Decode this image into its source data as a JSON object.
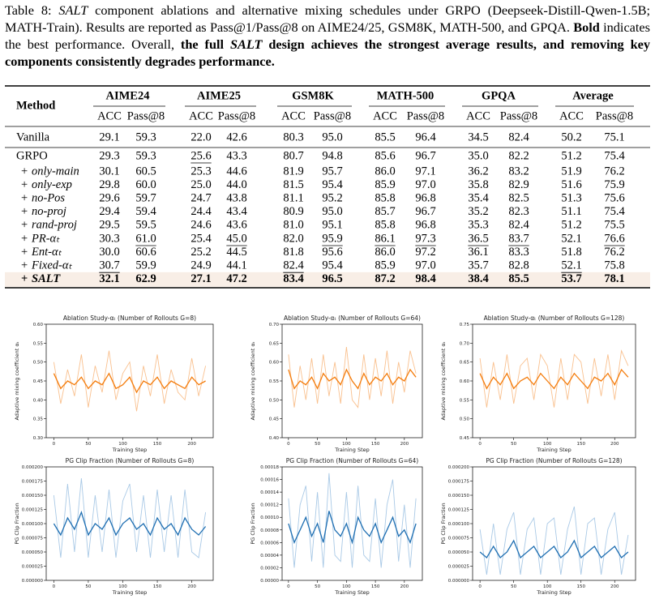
{
  "caption": [
    {
      "text": "Table 8: ",
      "style": "normal"
    },
    {
      "text": "SALT",
      "style": "italic"
    },
    {
      "text": " component ablations and alternative mixing schedules under GRPO (Deepseek-Distill-Qwen-1.5B; MATH-Train). Results are reported as Pass@1/Pass@8 on AIME24/25, GSM8K, MATH-500, and GPQA. ",
      "style": "normal"
    },
    {
      "text": "Bold",
      "style": "bold"
    },
    {
      "text": " indicates the best performance. Overall, ",
      "style": "normal"
    },
    {
      "text": "the full ",
      "style": "bold"
    },
    {
      "text": "SALT",
      "style": "bold-italic"
    },
    {
      "text": " design achieves the strongest average results, and removing key components consistently degrades performance.",
      "style": "bold"
    }
  ],
  "table": {
    "header": "Method",
    "groups": [
      "AIME24",
      "AIME25",
      "GSM8K",
      "MATH-500",
      "GPQA",
      "Average"
    ],
    "subheaders": [
      "ACC",
      "Pass@8"
    ],
    "rows": [
      {
        "method": {
          "name": "Vanilla"
        },
        "cells": [
          "29.1",
          "59.3",
          "22.0",
          "42.6",
          "80.3",
          "95.0",
          "85.5",
          "96.4",
          "34.5",
          "82.4",
          "50.2",
          "75.1"
        ]
      },
      {
        "method": {
          "name": "GRPO"
        },
        "cells": [
          "29.3",
          "59.3",
          "25.6",
          "43.3",
          "80.7",
          "94.8",
          "85.6",
          "96.7",
          "35.0",
          "82.2",
          "51.2",
          "75.4"
        ]
      },
      {
        "method": {
          "prefix": "+",
          "name": "only-main"
        },
        "cells": [
          "30.1",
          "60.5",
          "25.3",
          "44.6",
          "81.9",
          "95.7",
          "86.0",
          "97.1",
          "36.2",
          "83.2",
          "51.9",
          "76.2"
        ]
      },
      {
        "method": {
          "prefix": "+",
          "name": "only-exp"
        },
        "cells": [
          "29.8",
          "60.0",
          "25.0",
          "44.0",
          "81.5",
          "95.4",
          "85.9",
          "97.0",
          "35.8",
          "82.9",
          "51.6",
          "75.9"
        ]
      },
      {
        "method": {
          "prefix": "+",
          "name": "no-Pos"
        },
        "cells": [
          "29.6",
          "59.7",
          "24.7",
          "43.8",
          "81.1",
          "95.2",
          "85.8",
          "96.8",
          "35.4",
          "82.5",
          "51.3",
          "75.6"
        ]
      },
      {
        "method": {
          "prefix": "+",
          "name": "no-proj"
        },
        "cells": [
          "29.4",
          "59.4",
          "24.4",
          "43.4",
          "80.9",
          "95.0",
          "85.7",
          "96.7",
          "35.2",
          "82.3",
          "51.1",
          "75.4"
        ]
      },
      {
        "method": {
          "prefix": "+",
          "name": "rand-proj"
        },
        "cells": [
          "29.5",
          "59.5",
          "24.6",
          "43.6",
          "81.0",
          "95.1",
          "85.8",
          "96.8",
          "35.3",
          "82.4",
          "51.2",
          "75.5"
        ]
      },
      {
        "method": {
          "prefix": "+",
          "name": "PR-αₜ"
        },
        "cells": [
          "30.3",
          "61.0",
          "25.4",
          "45.0",
          "82.0",
          "95.9",
          "86.1",
          "97.3",
          "36.5",
          "83.7",
          "52.1",
          "76.6"
        ]
      },
      {
        "method": {
          "prefix": "+",
          "name": "Ent-αₜ"
        },
        "cells": [
          "30.0",
          "60.6",
          "25.2",
          "44.5",
          "81.8",
          "95.6",
          "86.0",
          "97.2",
          "36.1",
          "83.3",
          "51.8",
          "76.2"
        ]
      },
      {
        "method": {
          "prefix": "+",
          "name": "Fixed-αₜ"
        },
        "cells": [
          "30.7",
          "59.9",
          "24.9",
          "44.1",
          "82.4",
          "95.4",
          "85.9",
          "97.0",
          "35.7",
          "82.8",
          "52.1",
          "75.8"
        ]
      },
      {
        "method": {
          "prefix": "+",
          "name": "SALT"
        },
        "cells": [
          "32.1",
          "62.9",
          "27.1",
          "47.2",
          "83.4",
          "96.5",
          "87.2",
          "98.4",
          "38.4",
          "85.5",
          "53.7",
          "78.1"
        ]
      }
    ],
    "underlined": [
      [
        1,
        2
      ],
      [
        7,
        1
      ],
      [
        7,
        3
      ],
      [
        7,
        5
      ],
      [
        7,
        6
      ],
      [
        7,
        7
      ],
      [
        7,
        8
      ],
      [
        7,
        9
      ],
      [
        7,
        11
      ],
      [
        9,
        0
      ],
      [
        9,
        4
      ],
      [
        9,
        10
      ]
    ],
    "bold_row": 10,
    "highlight_row": 10,
    "highlight_color": "#f8eee6"
  },
  "chart_data": [
    {
      "type": "line",
      "title": "Ablation Study-αₜ (Number of Rollouts G=8)",
      "xlabel": "Training Step",
      "ylabel": "Adaptive mixing coefficient αₜ",
      "x": [
        0,
        10,
        20,
        30,
        40,
        50,
        60,
        70,
        80,
        90,
        100,
        110,
        120,
        130,
        140,
        150,
        160,
        170,
        180,
        190,
        200,
        210,
        220
      ],
      "series": [
        {
          "color": "#f9c08e",
          "values": [
            0.5,
            0.39,
            0.48,
            0.41,
            0.52,
            0.38,
            0.49,
            0.42,
            0.53,
            0.4,
            0.47,
            0.5,
            0.37,
            0.49,
            0.41,
            0.52,
            0.39,
            0.48,
            0.42,
            0.4,
            0.51,
            0.41,
            0.49
          ]
        },
        {
          "color": "#f47c0c",
          "values": [
            0.47,
            0.43,
            0.45,
            0.44,
            0.46,
            0.43,
            0.45,
            0.44,
            0.47,
            0.43,
            0.44,
            0.46,
            0.42,
            0.45,
            0.44,
            0.46,
            0.43,
            0.45,
            0.44,
            0.43,
            0.46,
            0.44,
            0.45
          ]
        }
      ],
      "xlim": [
        -11,
        231
      ],
      "ylim": [
        0.3,
        0.6
      ],
      "xticks": [
        0,
        50,
        100,
        150,
        200
      ],
      "yticks": [
        {
          "value": 0.3,
          "label": "0.30"
        },
        0.35,
        {
          "value": 0.4,
          "label": "0.40"
        },
        0.45,
        {
          "value": 0.5,
          "label": "0.50"
        },
        0.55,
        {
          "value": 0.6,
          "label": "0.60"
        }
      ]
    },
    {
      "type": "line",
      "title": "Ablation Study-αₜ (Number of Rollouts G=64)",
      "xlabel": "Training Step",
      "ylabel": "Adaptive mixing coefficient αₜ",
      "x": [
        0,
        10,
        20,
        30,
        40,
        50,
        60,
        70,
        80,
        90,
        100,
        110,
        120,
        130,
        140,
        150,
        160,
        170,
        180,
        190,
        200,
        210,
        220
      ],
      "series": [
        {
          "color": "#f9c08e",
          "values": [
            0.62,
            0.48,
            0.59,
            0.5,
            0.61,
            0.49,
            0.62,
            0.51,
            0.6,
            0.49,
            0.64,
            0.5,
            0.48,
            0.62,
            0.5,
            0.61,
            0.51,
            0.63,
            0.49,
            0.6,
            0.52,
            0.63,
            0.57
          ]
        },
        {
          "color": "#f47c0c",
          "values": [
            0.58,
            0.53,
            0.55,
            0.54,
            0.56,
            0.53,
            0.57,
            0.55,
            0.56,
            0.54,
            0.58,
            0.55,
            0.53,
            0.57,
            0.54,
            0.56,
            0.55,
            0.57,
            0.54,
            0.56,
            0.55,
            0.58,
            0.56
          ]
        }
      ],
      "xlim": [
        -11,
        231
      ],
      "ylim": [
        0.4,
        0.7
      ],
      "xticks": [
        0,
        50,
        100,
        150,
        200
      ],
      "yticks": [
        {
          "value": 0.4,
          "label": "0.40"
        },
        0.45,
        {
          "value": 0.5,
          "label": "0.50"
        },
        0.55,
        {
          "value": 0.6,
          "label": "0.60"
        },
        0.65,
        {
          "value": 0.7,
          "label": "0.70"
        }
      ]
    },
    {
      "type": "line",
      "title": "Ablation Study-αₜ (Number of Rollouts G=128)",
      "xlabel": "Training Step",
      "ylabel": "Adaptive mixing coefficient αₜ",
      "x": [
        0,
        10,
        20,
        30,
        40,
        50,
        60,
        70,
        80,
        90,
        100,
        110,
        120,
        130,
        140,
        150,
        160,
        170,
        180,
        190,
        200,
        210,
        220
      ],
      "series": [
        {
          "color": "#f9c08e",
          "values": [
            0.66,
            0.53,
            0.65,
            0.55,
            0.67,
            0.54,
            0.64,
            0.66,
            0.55,
            0.67,
            0.64,
            0.53,
            0.66,
            0.55,
            0.67,
            0.65,
            0.54,
            0.66,
            0.56,
            0.67,
            0.55,
            0.68,
            0.64
          ]
        },
        {
          "color": "#f47c0c",
          "values": [
            0.62,
            0.58,
            0.61,
            0.59,
            0.62,
            0.58,
            0.6,
            0.61,
            0.59,
            0.62,
            0.6,
            0.58,
            0.61,
            0.59,
            0.62,
            0.6,
            0.58,
            0.61,
            0.6,
            0.62,
            0.59,
            0.63,
            0.61
          ]
        }
      ],
      "xlim": [
        -11,
        231
      ],
      "ylim": [
        0.45,
        0.75
      ],
      "xticks": [
        0,
        50,
        100,
        150,
        200
      ],
      "yticks": [
        0.45,
        {
          "value": 0.5,
          "label": "0.50"
        },
        0.55,
        {
          "value": 0.6,
          "label": "0.60"
        },
        0.65,
        {
          "value": 0.7,
          "label": "0.70"
        },
        0.75
      ]
    },
    {
      "type": "line",
      "title": "PG Clip Fraction (Number of Rollouts G=8)",
      "xlabel": "Training Step",
      "ylabel": "PG Clip Fraction",
      "x": [
        0,
        10,
        20,
        30,
        40,
        50,
        60,
        70,
        80,
        90,
        100,
        110,
        120,
        130,
        140,
        150,
        160,
        170,
        180,
        190,
        200,
        210,
        220
      ],
      "series": [
        {
          "color": "#a9c9e6",
          "values": [
            0.00015,
            4e-05,
            0.00017,
            5e-05,
            0.00018,
            4e-05,
            0.00015,
            5e-05,
            0.00016,
            4e-05,
            0.00014,
            0.00017,
            5e-05,
            0.00015,
            4e-05,
            0.00016,
            5e-05,
            0.00015,
            4e-05,
            0.00016,
            5e-05,
            4e-05,
            0.00012
          ]
        },
        {
          "color": "#1f6fb2",
          "values": [
            0.0001,
            8e-05,
            0.00011,
            9e-05,
            0.00012,
            8e-05,
            0.0001,
            9e-05,
            0.00011,
            8e-05,
            0.0001,
            0.00011,
            9e-05,
            0.0001,
            8e-05,
            0.00011,
            9e-05,
            0.0001,
            8e-05,
            0.00011,
            9e-05,
            8e-05,
            9.5e-05
          ]
        }
      ],
      "xlim": [
        -11,
        231
      ],
      "ylim": [
        0,
        0.0002
      ],
      "xticks": [
        0,
        50,
        100,
        150,
        200
      ],
      "yticks": [
        {
          "value": 0,
          "label": "0.000000"
        },
        2.5e-05,
        {
          "value": 5e-05,
          "label": "0.000050"
        },
        7.5e-05,
        {
          "value": 0.0001,
          "label": "0.000100"
        },
        0.000125,
        {
          "value": 0.00015,
          "label": "0.000150"
        },
        0.000175,
        {
          "value": 0.0002,
          "label": "0.000200"
        }
      ]
    },
    {
      "type": "line",
      "title": "PG Clip Fraction (Number of Rollouts G=64)",
      "xlabel": "Training Step",
      "ylabel": "PG Clip Fraction",
      "x": [
        0,
        10,
        20,
        30,
        40,
        50,
        60,
        70,
        80,
        90,
        100,
        110,
        120,
        130,
        140,
        150,
        160,
        170,
        180,
        190,
        200,
        210,
        220
      ],
      "series": [
        {
          "color": "#a9c9e6",
          "values": [
            0.00013,
            2e-05,
            0.00012,
            0.00015,
            3e-05,
            0.00014,
            2e-05,
            0.00017,
            4e-05,
            3e-05,
            0.00014,
            2e-05,
            0.00015,
            4e-05,
            3e-05,
            0.00013,
            2e-05,
            0.00012,
            0.00016,
            3e-05,
            0.00012,
            2e-05,
            0.00013
          ]
        },
        {
          "color": "#1f6fb2",
          "values": [
            9e-05,
            6e-05,
            8e-05,
            0.0001,
            7e-05,
            9e-05,
            6e-05,
            0.00011,
            8e-05,
            7e-05,
            9e-05,
            6e-05,
            0.0001,
            8e-05,
            7e-05,
            9e-05,
            6e-05,
            8e-05,
            0.0001,
            7e-05,
            8e-05,
            6e-05,
            9e-05
          ]
        }
      ],
      "xlim": [
        -11,
        231
      ],
      "ylim": [
        0,
        0.00018
      ],
      "xticks": [
        0,
        50,
        100,
        150,
        200
      ],
      "yticks": [
        {
          "value": 0,
          "label": "0.00000"
        },
        2e-05,
        4e-05,
        6e-05,
        8e-05,
        {
          "value": 0.0001,
          "label": "0.00010"
        },
        0.00012,
        0.00014,
        0.00016,
        0.00018
      ]
    },
    {
      "type": "line",
      "title": "PG Clip Fraction (Number of Rollouts G=128)",
      "xlabel": "Training Step",
      "ylabel": "PG Clip Fraction",
      "x": [
        0,
        10,
        20,
        30,
        40,
        50,
        60,
        70,
        80,
        90,
        100,
        110,
        120,
        130,
        140,
        150,
        160,
        170,
        180,
        190,
        200,
        210,
        220
      ],
      "series": [
        {
          "color": "#a9c9e6",
          "values": [
            9e-05,
            1e-05,
            0.0001,
            1e-05,
            9e-05,
            0.00012,
            1e-05,
            9e-05,
            0.00011,
            1e-05,
            0.0001,
            0.00011,
            1e-05,
            9e-05,
            0.00013,
            1e-05,
            0.0001,
            0.00011,
            1e-05,
            9e-05,
            0.00012,
            1e-05,
            8e-05
          ]
        },
        {
          "color": "#1f6fb2",
          "values": [
            5e-05,
            4e-05,
            6e-05,
            4e-05,
            5e-05,
            7e-05,
            4e-05,
            5e-05,
            6e-05,
            4e-05,
            5e-05,
            6e-05,
            4e-05,
            5e-05,
            7e-05,
            4e-05,
            5e-05,
            6e-05,
            4e-05,
            5e-05,
            6e-05,
            4e-05,
            5e-05
          ]
        }
      ],
      "xlim": [
        -11,
        231
      ],
      "ylim": [
        0,
        0.0002
      ],
      "xticks": [
        0,
        50,
        100,
        150,
        200
      ],
      "yticks": [
        {
          "value": 0,
          "label": "0.000000"
        },
        2.5e-05,
        {
          "value": 5e-05,
          "label": "0.000050"
        },
        7.5e-05,
        {
          "value": 0.0001,
          "label": "0.000100"
        },
        0.000125,
        {
          "value": 0.00015,
          "label": "0.000150"
        },
        0.000175,
        {
          "value": 0.0002,
          "label": "0.000200"
        }
      ]
    }
  ]
}
